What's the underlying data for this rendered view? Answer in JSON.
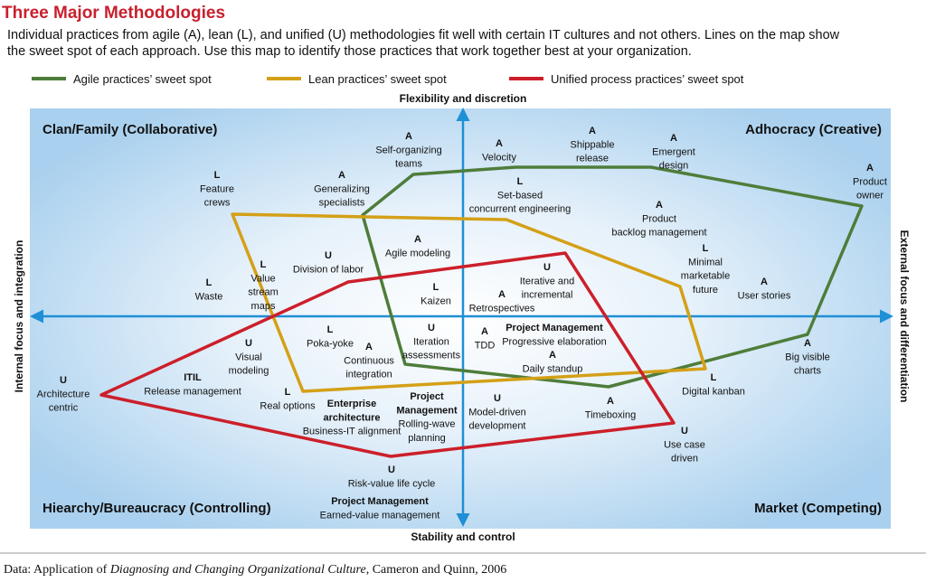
{
  "header": {
    "title": "Three Major Methodologies",
    "description": [
      "Individual practices from agile (A), lean (L), and unified (U) methodologies fit well with certain IT cultures and not others. Lines on the map show",
      "the sweet spot of each approach. Use this map to identify those practices that work together best at your organization."
    ]
  },
  "legend": [
    {
      "label": "Agile practices’ sweet spot",
      "color": "#4e7d3a"
    },
    {
      "label": "Lean practices’ sweet spot",
      "color": "#d4a017"
    },
    {
      "label": "Unified process practices’ sweet spot",
      "color": "#cc1f2a"
    }
  ],
  "axes": {
    "top": "Flexibility and discretion",
    "bottom": "Stability and control",
    "left": "Internal focus and integration",
    "right": "External focus and differentiation"
  },
  "quadrants": {
    "top_left": "Clan/Family (Collaborative)",
    "top_right": "Adhocracy (Creative)",
    "bottom_left": "Hiearchy/Bureaucracy (Controlling)",
    "bottom_right": "Market (Competing)"
  },
  "practices": [
    {
      "code": "A",
      "lines": [
        "Self-organizing",
        "teams"
      ]
    },
    {
      "code": "A",
      "lines": [
        "Velocity"
      ]
    },
    {
      "code": "A",
      "lines": [
        "Shippable",
        "release"
      ]
    },
    {
      "code": "A",
      "lines": [
        "Emergent",
        "design"
      ]
    },
    {
      "code": "A",
      "lines": [
        "Product",
        "owner"
      ]
    },
    {
      "code": "L",
      "lines": [
        "Feature",
        "crews"
      ]
    },
    {
      "code": "A",
      "lines": [
        "Generalizing",
        "specialists"
      ]
    },
    {
      "code": "L",
      "lines": [
        "Set-based",
        "concurrent engineering"
      ]
    },
    {
      "code": "A",
      "lines": [
        "Product",
        "backlog management"
      ]
    },
    {
      "code": "A",
      "lines": [
        "Agile modeling"
      ]
    },
    {
      "code": "U",
      "lines": [
        "Division of labor"
      ]
    },
    {
      "code": "L",
      "lines": [
        "Minimal",
        "marketable",
        "future"
      ]
    },
    {
      "code": "L",
      "lines": [
        "Value",
        "stream",
        "maps"
      ]
    },
    {
      "code": "U",
      "lines": [
        "Iterative and",
        "incremental"
      ]
    },
    {
      "code": "L",
      "lines": [
        "Waste"
      ]
    },
    {
      "code": "L",
      "lines": [
        "Kaizen"
      ]
    },
    {
      "code": "A",
      "lines": [
        "User stories"
      ]
    },
    {
      "code": "A",
      "lines": [
        "Retrospectives"
      ]
    },
    {
      "code": "L",
      "lines": [
        "Poka-yoke"
      ]
    },
    {
      "code": "U",
      "lines": [
        "Iteration",
        "assessments"
      ]
    },
    {
      "code": "A",
      "lines": [
        "TDD"
      ]
    },
    {
      "heading": [
        "Project Management"
      ],
      "lines": [
        "Progressive elaboration"
      ]
    },
    {
      "code": "U",
      "lines": [
        "Visual",
        "modeling"
      ]
    },
    {
      "code": "A",
      "lines": [
        "Continuous",
        "integration"
      ]
    },
    {
      "code": "A",
      "lines": [
        "Daily standup"
      ]
    },
    {
      "code": "A",
      "lines": [
        "Big visible",
        "charts"
      ]
    },
    {
      "heading": [
        "ITIL"
      ],
      "lines": [
        "Release management"
      ]
    },
    {
      "code": "U",
      "lines": [
        "Architecture",
        "centric"
      ]
    },
    {
      "code": "L",
      "lines": [
        "Real options"
      ]
    },
    {
      "heading": [
        "Enterprise",
        "architecture"
      ],
      "lines": [
        "Business-IT alignment"
      ]
    },
    {
      "heading": [
        "Project",
        "Management"
      ],
      "lines": [
        "Rolling-wave",
        "planning"
      ]
    },
    {
      "code": "U",
      "lines": [
        "Model-driven",
        "development"
      ]
    },
    {
      "code": "L",
      "lines": [
        "Digital kanban"
      ]
    },
    {
      "code": "A",
      "lines": [
        "Timeboxing"
      ]
    },
    {
      "code": "U",
      "lines": [
        "Use case",
        "driven"
      ]
    },
    {
      "code": "U",
      "lines": [
        "Risk-value life cycle"
      ]
    },
    {
      "heading": [
        "Project Management"
      ],
      "lines": [
        "Earned-value management"
      ]
    }
  ],
  "source": {
    "prefix": "Data: Application of ",
    "work": "Diagnosing and Changing Organizational Culture",
    "suffix": ", Cameron and Quinn, 2006"
  }
}
